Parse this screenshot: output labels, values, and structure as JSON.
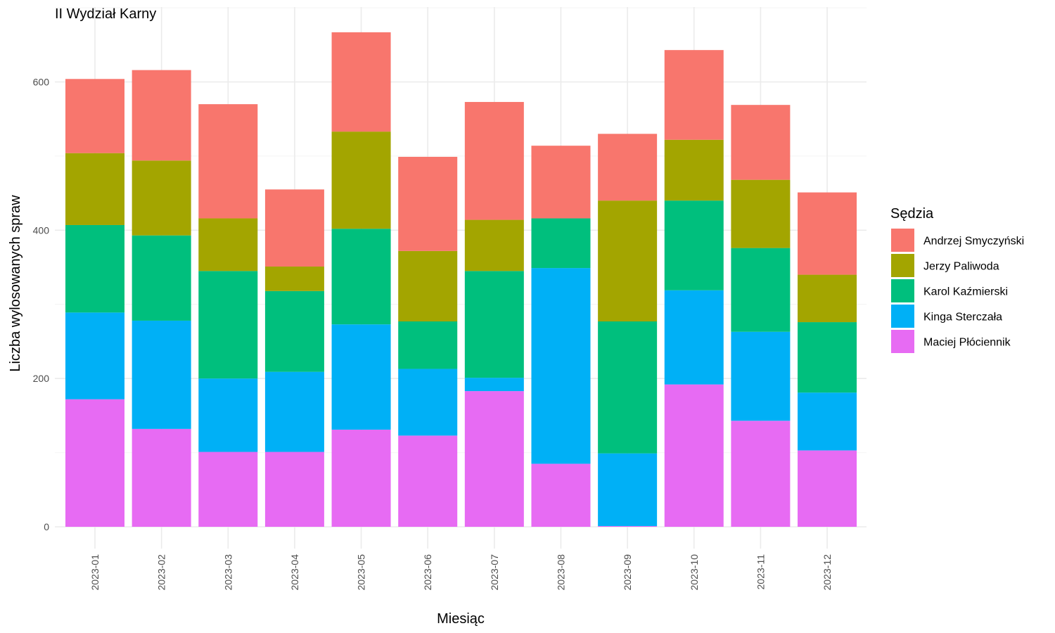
{
  "chart_data": {
    "type": "bar",
    "stacked": true,
    "title": "II Wydział Karny",
    "xlabel": "Miesiąc",
    "ylabel": "Liczba wylosowanych spraw",
    "ylim": [
      0,
      700
    ],
    "yticks": [
      0,
      200,
      400,
      600
    ],
    "grid": true,
    "legend": {
      "title": "Sędzia",
      "position": "right"
    },
    "categories": [
      "2023-01",
      "2023-02",
      "2023-03",
      "2023-04",
      "2023-05",
      "2023-06",
      "2023-07",
      "2023-08",
      "2023-09",
      "2023-10",
      "2023-11",
      "2023-12"
    ],
    "series": [
      {
        "name": "Andrzej Smyczyński",
        "color": "#F8766D",
        "values": [
          100,
          122,
          154,
          104,
          134,
          127,
          159,
          98,
          90,
          121,
          101,
          111
        ]
      },
      {
        "name": "Jerzy Paliwoda",
        "color": "#A3A500",
        "values": [
          97,
          101,
          71,
          33,
          131,
          95,
          69,
          0,
          163,
          82,
          92,
          64
        ]
      },
      {
        "name": "Karol Kaźmierski",
        "color": "#00BF7D",
        "values": [
          118,
          115,
          145,
          109,
          129,
          64,
          144,
          67,
          178,
          121,
          113,
          95
        ]
      },
      {
        "name": "Kinga Sterczała",
        "color": "#00B0F6",
        "values": [
          117,
          146,
          99,
          108,
          142,
          90,
          18,
          264,
          98,
          127,
          120,
          78
        ]
      },
      {
        "name": "Maciej Płóciennik",
        "color": "#E76BF3",
        "values": [
          172,
          132,
          101,
          101,
          131,
          123,
          183,
          85,
          1,
          192,
          143,
          103
        ]
      }
    ]
  }
}
